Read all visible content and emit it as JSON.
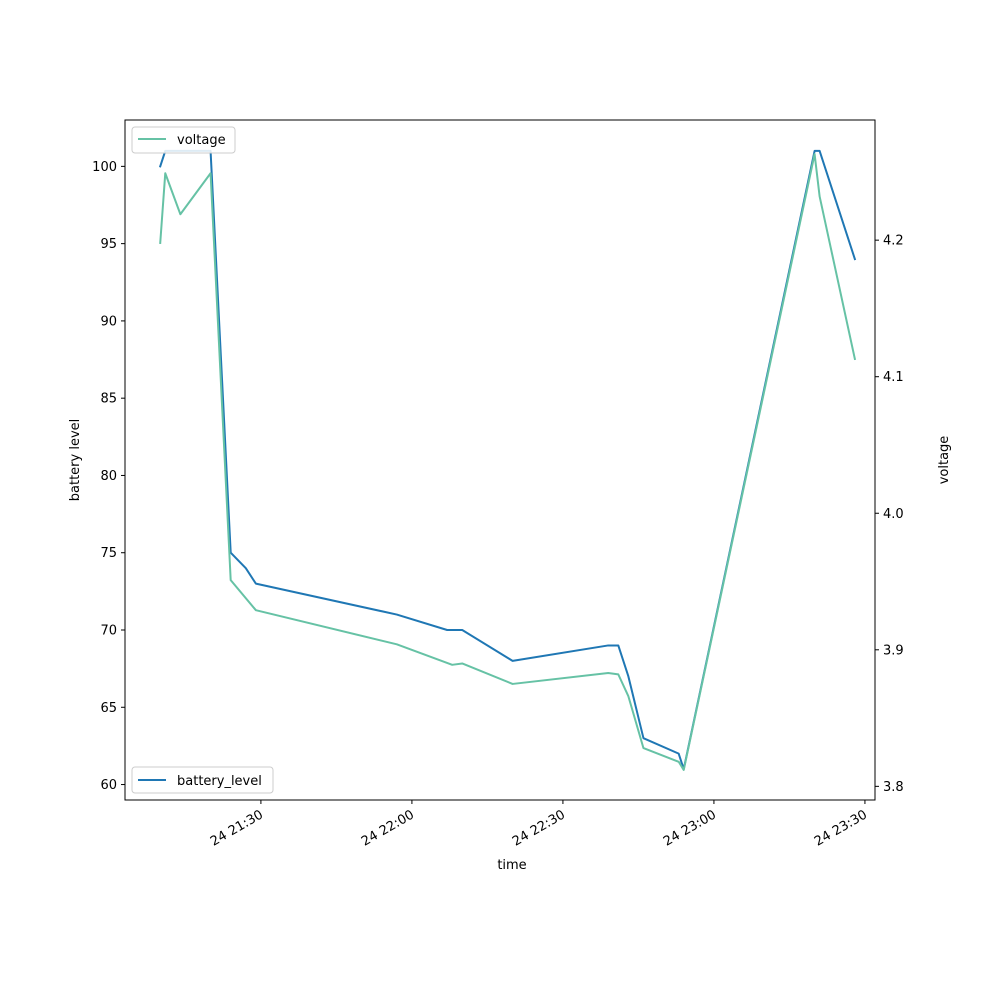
{
  "chart_data": {
    "type": "line",
    "xlabel": "time",
    "ylabel_left": "battery level",
    "ylabel_right": "voltage",
    "x_ticks": [
      "24 21:30",
      "24 22:00",
      "24 22:30",
      "24 23:00",
      "24 23:30"
    ],
    "x_tick_times": [
      "21:30",
      "22:00",
      "22:30",
      "23:00",
      "23:30"
    ],
    "xlim": [
      "21:03",
      "23:32"
    ],
    "ylim_left": [
      59,
      103
    ],
    "yticks_left": [
      60,
      65,
      70,
      75,
      80,
      85,
      90,
      95,
      100
    ],
    "ylim_right": [
      3.79,
      4.288
    ],
    "yticks_right": [
      3.8,
      3.9,
      4.0,
      4.1,
      4.2
    ],
    "legend_left_location": "lower left",
    "legend_right_location": "upper left",
    "series": [
      {
        "name": "battery_level",
        "axis": "left",
        "color": "#1f77b4",
        "x": [
          "21:10",
          "21:11",
          "21:20",
          "21:24",
          "21:27",
          "21:29",
          "21:57",
          "22:07",
          "22:10",
          "22:20",
          "22:39",
          "22:41",
          "22:43",
          "22:46",
          "22:53",
          "22:54",
          "23:20",
          "23:21",
          "23:28"
        ],
        "values": [
          100,
          101,
          101,
          75,
          74,
          73,
          71,
          70,
          70,
          68,
          69,
          69,
          67,
          63,
          62,
          61,
          101,
          101,
          94
        ]
      },
      {
        "name": "voltage",
        "axis": "right",
        "color": "#66c2a5",
        "x": [
          "21:10",
          "21:11",
          "21:14",
          "21:20",
          "21:24",
          "21:29",
          "21:57",
          "22:08",
          "22:10",
          "22:20",
          "22:39",
          "22:41",
          "22:43",
          "22:46",
          "22:53",
          "22:54",
          "23:20",
          "23:21",
          "23:28"
        ],
        "values": [
          4.198,
          4.249,
          4.219,
          4.249,
          3.951,
          3.929,
          3.904,
          3.889,
          3.89,
          3.875,
          3.883,
          3.882,
          3.866,
          3.828,
          3.818,
          3.812,
          4.263,
          4.232,
          4.113
        ]
      }
    ]
  }
}
